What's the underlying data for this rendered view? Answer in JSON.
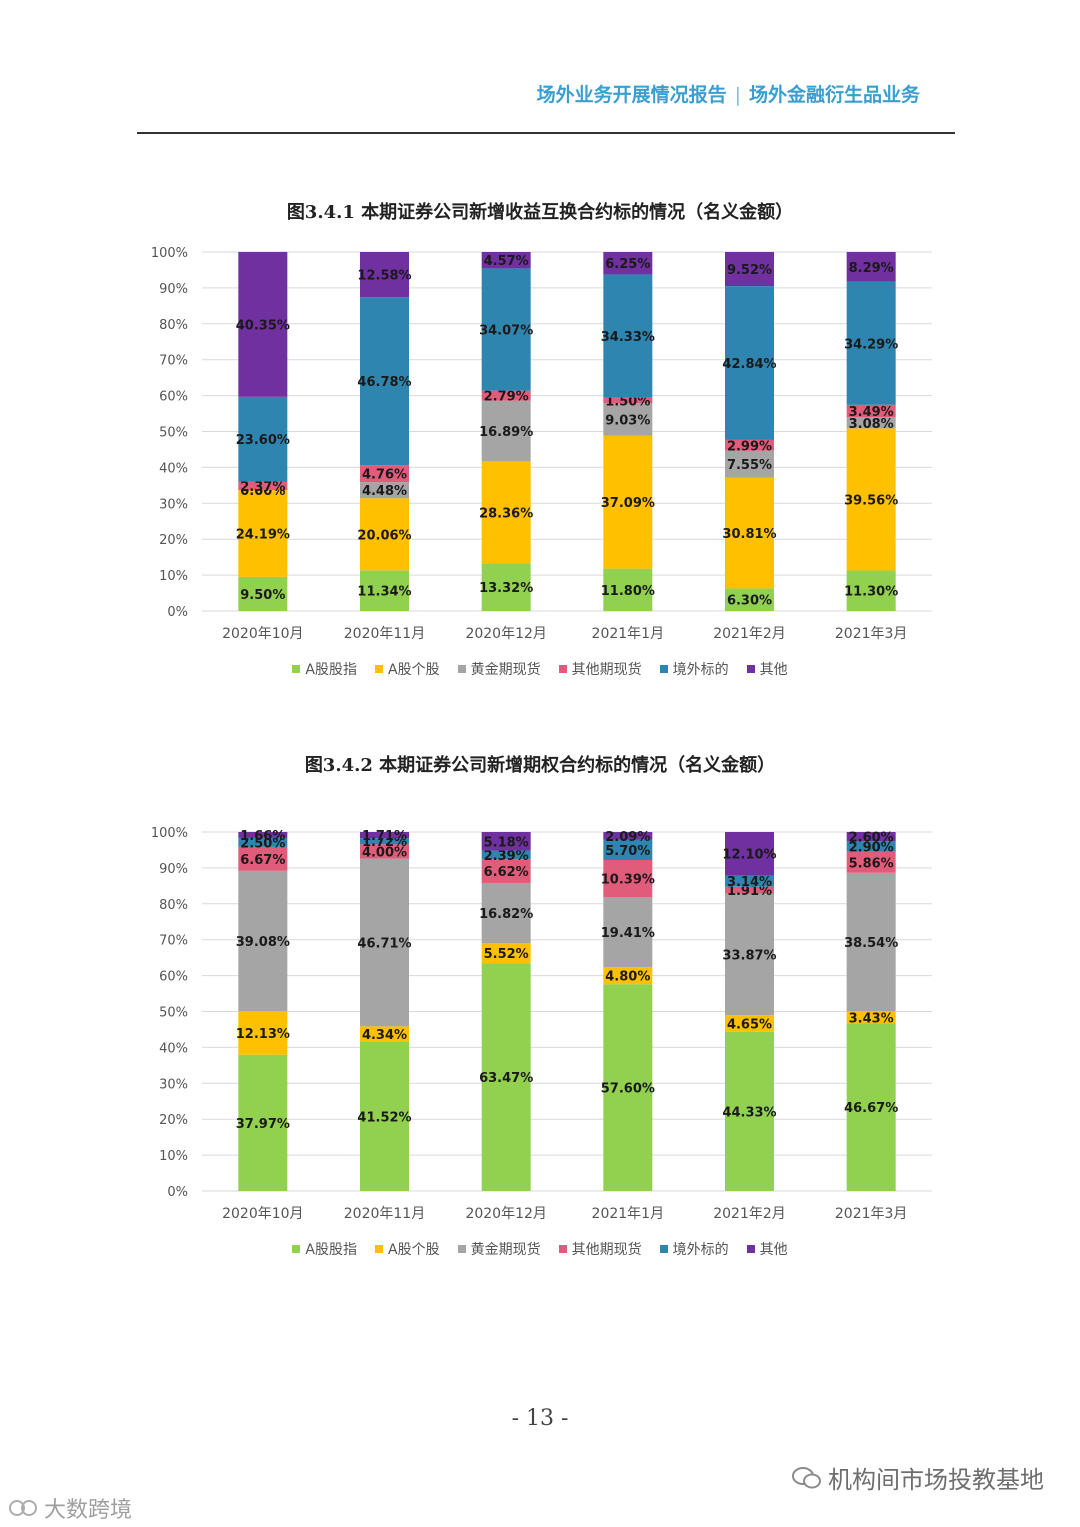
{
  "header": {
    "left": "场外业务开展情况报告",
    "separator": "|",
    "right": "场外金融衍生品业务"
  },
  "legend": [
    {
      "name": "A股股指",
      "color": "#92d050"
    },
    {
      "name": "A股个股",
      "color": "#ffc000"
    },
    {
      "name": "黄金期现货",
      "color": "#a5a5a5"
    },
    {
      "name": "其他期现货",
      "color": "#e15b7a"
    },
    {
      "name": "境外标的",
      "color": "#2e86b0"
    },
    {
      "name": "其他",
      "color": "#7030a0"
    }
  ],
  "chart_data": [
    {
      "type": "bar",
      "stacked": true,
      "title": "图3.4.1 本期证券公司新增收益互换合约标的情况（名义金额）",
      "categories": [
        "2020年10月",
        "2020年11月",
        "2020年12月",
        "2021年1月",
        "2021年2月",
        "2021年3月"
      ],
      "yticks": [
        "0%",
        "10%",
        "20%",
        "30%",
        "40%",
        "50%",
        "60%",
        "70%",
        "80%",
        "90%",
        "100%"
      ],
      "ylim": [
        0,
        100
      ],
      "grid": true,
      "legend_position": "bottom",
      "series": [
        {
          "name": "A股股指",
          "values": [
            9.5,
            11.34,
            13.32,
            11.8,
            6.3,
            11.3
          ],
          "labels": [
            "9.50%",
            "11.34%",
            "13.32%",
            "11.80%",
            "6.30%",
            "11.30%"
          ]
        },
        {
          "name": "A股个股",
          "values": [
            24.19,
            20.06,
            28.36,
            37.09,
            30.81,
            39.56
          ],
          "labels": [
            "24.19%",
            "20.06%",
            "28.36%",
            "37.09%",
            "30.81%",
            "39.56%"
          ]
        },
        {
          "name": "黄金期现货",
          "values": [
            0.0,
            4.48,
            16.89,
            9.03,
            7.55,
            3.08
          ],
          "labels": [
            "0.00%",
            "4.48%",
            "16.89%",
            "9.03%",
            "7.55%",
            "3.08%"
          ]
        },
        {
          "name": "其他期现货",
          "values": [
            2.37,
            4.76,
            2.79,
            1.5,
            2.99,
            3.49
          ],
          "labels": [
            "2.37%",
            "4.76%",
            "2.79%",
            "1.50%",
            "2.99%",
            "3.49%"
          ]
        },
        {
          "name": "境外标的",
          "values": [
            23.6,
            46.78,
            34.07,
            34.33,
            42.84,
            34.29
          ],
          "labels": [
            "23.60%",
            "46.78%",
            "34.07%",
            "34.33%",
            "42.84%",
            "34.29%"
          ]
        },
        {
          "name": "其他",
          "values": [
            40.35,
            12.58,
            4.57,
            6.25,
            9.52,
            8.29
          ],
          "labels": [
            "40.35%",
            "12.58%",
            "4.57%",
            "6.25%",
            "9.52%",
            "8.29%"
          ]
        }
      ]
    },
    {
      "type": "bar",
      "stacked": true,
      "title": "图3.4.2 本期证券公司新增期权合约标的情况（名义金额）",
      "categories": [
        "2020年10月",
        "2020年11月",
        "2020年12月",
        "2021年1月",
        "2021年2月",
        "2021年3月"
      ],
      "yticks": [
        "0%",
        "10%",
        "20%",
        "30%",
        "40%",
        "50%",
        "60%",
        "70%",
        "80%",
        "90%",
        "100%"
      ],
      "ylim": [
        0,
        100
      ],
      "grid": true,
      "legend_position": "bottom",
      "series": [
        {
          "name": "A股股指",
          "values": [
            37.97,
            41.52,
            63.47,
            57.6,
            44.33,
            46.67
          ],
          "labels": [
            "37.97%",
            "41.52%",
            "63.47%",
            "57.60%",
            "44.33%",
            "46.67%"
          ]
        },
        {
          "name": "A股个股",
          "values": [
            12.13,
            4.34,
            5.52,
            4.8,
            4.65,
            3.43
          ],
          "labels": [
            "12.13%",
            "4.34%",
            "5.52%",
            "4.80%",
            "4.65%",
            "3.43%"
          ]
        },
        {
          "name": "黄金期现货",
          "values": [
            39.08,
            46.71,
            16.82,
            19.41,
            33.87,
            38.54
          ],
          "labels": [
            "39.08%",
            "46.71%",
            "16.82%",
            "19.41%",
            "33.87%",
            "38.54%"
          ]
        },
        {
          "name": "其他期现货",
          "values": [
            6.67,
            4.0,
            6.62,
            10.39,
            1.91,
            5.86
          ],
          "labels": [
            "6.67%",
            "4.00%",
            "6.62%",
            "10.39%",
            "1.91%",
            "5.86%"
          ]
        },
        {
          "name": "境外标的",
          "values": [
            2.5,
            1.72,
            2.39,
            5.7,
            3.14,
            2.9
          ],
          "labels": [
            "2.50%",
            "1.72%",
            "2.39%",
            "5.70%",
            "3.14%",
            "2.90%"
          ]
        },
        {
          "name": "其他",
          "values": [
            1.66,
            1.71,
            5.18,
            2.09,
            12.1,
            2.6
          ],
          "labels": [
            "1.66%",
            "1.71%",
            "5.18%",
            "2.09%",
            "12.10%",
            "2.60%"
          ]
        }
      ]
    }
  ],
  "page_number": "- 13 -",
  "watermarks": {
    "right": "机构间市场投教基地",
    "left": "大数跨境"
  }
}
